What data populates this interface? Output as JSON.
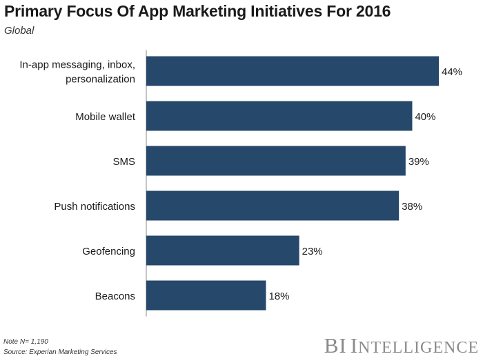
{
  "title": "Primary Focus Of App Marketing Initiatives For 2016",
  "subtitle": "Global",
  "footnotes": {
    "note": "Note N= 1,190",
    "source": "Source: Experian Marketing Services"
  },
  "brand": {
    "bi": "BI",
    "intelligence_initial": "I",
    "intelligence_rest": "NTELLIGENCE"
  },
  "colors": {
    "bar": "#26486b"
  },
  "chart_data": {
    "type": "bar",
    "orientation": "horizontal",
    "title": "Primary Focus Of App Marketing Initiatives For 2016",
    "subtitle": "Global",
    "categories": [
      [
        "In-app messaging, inbox,",
        "personalization"
      ],
      [
        "Mobile wallet"
      ],
      [
        "SMS"
      ],
      [
        "Push notifications"
      ],
      [
        "Geofencing"
      ],
      [
        "Beacons"
      ]
    ],
    "values": [
      44,
      40,
      39,
      38,
      23,
      18
    ],
    "value_labels": [
      "44%",
      "40%",
      "39%",
      "38%",
      "23%",
      "18%"
    ],
    "unit": "%",
    "xlim": [
      0,
      44
    ],
    "grid": false,
    "legend": "none"
  }
}
